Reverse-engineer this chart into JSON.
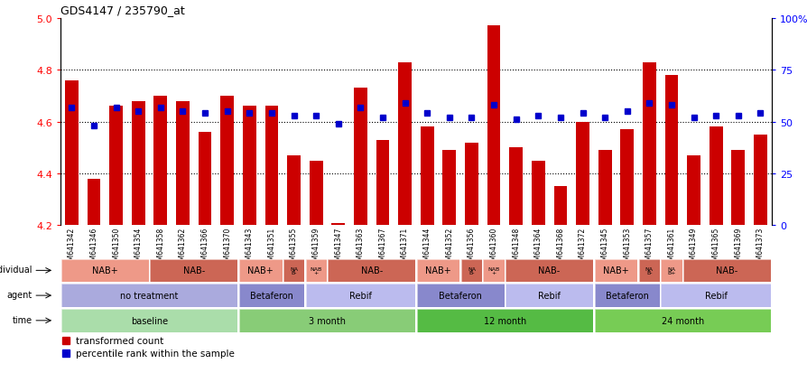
{
  "title": "GDS4147 / 235790_at",
  "samples": [
    "GSM641342",
    "GSM641346",
    "GSM641350",
    "GSM641354",
    "GSM641358",
    "GSM641362",
    "GSM641366",
    "GSM641370",
    "GSM641343",
    "GSM641351",
    "GSM641355",
    "GSM641359",
    "GSM641347",
    "GSM641363",
    "GSM641367",
    "GSM641371",
    "GSM641344",
    "GSM641352",
    "GSM641356",
    "GSM641360",
    "GSM641348",
    "GSM641364",
    "GSM641368",
    "GSM641372",
    "GSM641345",
    "GSM641353",
    "GSM641357",
    "GSM641361",
    "GSM641349",
    "GSM641365",
    "GSM641369",
    "GSM641373"
  ],
  "bar_values": [
    4.76,
    4.38,
    4.66,
    4.68,
    4.7,
    4.68,
    4.56,
    4.7,
    4.66,
    4.66,
    4.47,
    4.45,
    4.21,
    4.73,
    4.53,
    4.83,
    4.58,
    4.49,
    4.52,
    4.97,
    4.5,
    4.45,
    4.35,
    4.6,
    4.49,
    4.57,
    4.83,
    4.78,
    4.47,
    4.58,
    4.49,
    4.55
  ],
  "percentile_values": [
    57,
    48,
    57,
    55,
    57,
    55,
    54,
    55,
    54,
    54,
    53,
    53,
    49,
    57,
    52,
    59,
    54,
    52,
    52,
    58,
    51,
    53,
    52,
    54,
    52,
    55,
    59,
    58,
    52,
    53,
    53,
    54
  ],
  "ylim_left": [
    4.2,
    5.0
  ],
  "ylim_right": [
    0,
    100
  ],
  "yticks_left": [
    4.2,
    4.4,
    4.6,
    4.8,
    5.0
  ],
  "yticks_right": [
    0,
    25,
    50,
    75,
    100
  ],
  "ytick_right_labels": [
    "0",
    "25",
    "50",
    "75",
    "100%"
  ],
  "hlines": [
    4.4,
    4.6,
    4.8
  ],
  "bar_color": "#cc0000",
  "dot_color": "#0000cc",
  "bar_width": 0.6,
  "time_groups": [
    {
      "text": "baseline",
      "start": 0,
      "end": 8,
      "color": "#aaddaa"
    },
    {
      "text": "3 month",
      "start": 8,
      "end": 16,
      "color": "#88cc77"
    },
    {
      "text": "12 month",
      "start": 16,
      "end": 24,
      "color": "#55bb44"
    },
    {
      "text": "24 month",
      "start": 24,
      "end": 32,
      "color": "#77cc55"
    }
  ],
  "agent_groups": [
    {
      "text": "no treatment",
      "start": 0,
      "end": 8,
      "color": "#aaaadd"
    },
    {
      "text": "Betaferon",
      "start": 8,
      "end": 11,
      "color": "#8888cc"
    },
    {
      "text": "Rebif",
      "start": 11,
      "end": 16,
      "color": "#bbbbee"
    },
    {
      "text": "Betaferon",
      "start": 16,
      "end": 20,
      "color": "#8888cc"
    },
    {
      "text": "Rebif",
      "start": 20,
      "end": 24,
      "color": "#bbbbee"
    },
    {
      "text": "Betaferon",
      "start": 24,
      "end": 27,
      "color": "#8888cc"
    },
    {
      "text": "Rebif",
      "start": 27,
      "end": 32,
      "color": "#bbbbee"
    }
  ],
  "individual_groups": [
    {
      "text": "NAB+",
      "start": 0,
      "end": 4,
      "color": "#ee9988"
    },
    {
      "text": "NAB-",
      "start": 4,
      "end": 8,
      "color": "#cc6655"
    },
    {
      "text": "NAB+",
      "start": 8,
      "end": 10,
      "color": "#ee9988"
    },
    {
      "text": "NA\nB-",
      "start": 10,
      "end": 11,
      "color": "#cc6655"
    },
    {
      "text": "NAB\n+",
      "start": 11,
      "end": 12,
      "color": "#ee9988"
    },
    {
      "text": "NAB-",
      "start": 12,
      "end": 16,
      "color": "#cc6655"
    },
    {
      "text": "NAB+",
      "start": 16,
      "end": 18,
      "color": "#ee9988"
    },
    {
      "text": "NA\nB-",
      "start": 18,
      "end": 19,
      "color": "#cc6655"
    },
    {
      "text": "NAB\n+",
      "start": 19,
      "end": 20,
      "color": "#ee9988"
    },
    {
      "text": "NAB-",
      "start": 20,
      "end": 24,
      "color": "#cc6655"
    },
    {
      "text": "NAB+",
      "start": 24,
      "end": 26,
      "color": "#ee9988"
    },
    {
      "text": "NA\nB-",
      "start": 26,
      "end": 27,
      "color": "#cc6655"
    },
    {
      "text": "NA\nB+",
      "start": 27,
      "end": 28,
      "color": "#ee9988"
    },
    {
      "text": "NAB-",
      "start": 28,
      "end": 32,
      "color": "#cc6655"
    }
  ],
  "legend_items": [
    {
      "label": "transformed count",
      "color": "#cc0000"
    },
    {
      "label": "percentile rank within the sample",
      "color": "#0000cc"
    }
  ],
  "xticklabel_bg": "#cccccc"
}
